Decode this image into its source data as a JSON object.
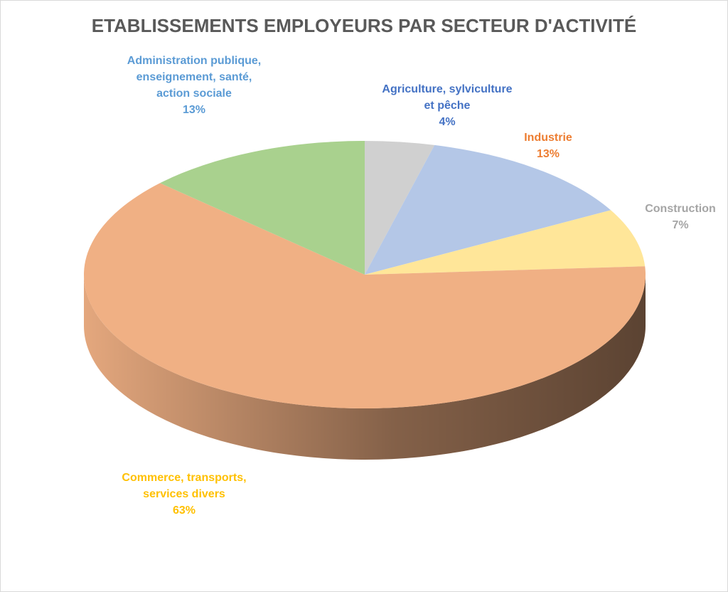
{
  "chart_data": {
    "type": "pie",
    "title": "ETABLISSEMENTS EMPLOYEURS PAR SECTEUR D'ACTIVITÉ",
    "categories": [
      "Agriculture, sylviculture et pêche",
      "Industrie",
      "Construction",
      "Commerce, transports, services divers",
      "Administration publique, enseignement, santé, action sociale"
    ],
    "values": [
      4,
      13,
      7,
      63,
      13
    ],
    "value_labels": [
      "4%",
      "13%",
      "7%",
      "63%",
      "13%"
    ],
    "colors": [
      "#d0d0d0",
      "#b4c7e7",
      "#ffe699",
      "#f0b084",
      "#a9d18e"
    ],
    "label_colors": [
      "#4472c4",
      "#ed7d31",
      "#a5a5a5",
      "#ffc000",
      "#5b9bd5"
    ]
  }
}
